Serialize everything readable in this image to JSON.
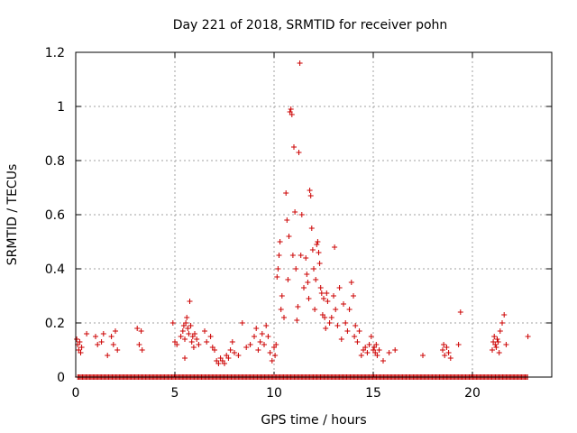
{
  "chart_data": {
    "type": "scatter",
    "title": "Day 221 of 2018, SRMTID for receiver pohn",
    "xlabel": "GPS time / hours",
    "ylabel": "SRMTID / TECUs",
    "xlim": [
      0,
      24
    ],
    "ylim": [
      0,
      1.2
    ],
    "xticks": [
      0,
      5,
      10,
      15,
      20
    ],
    "yticks": [
      0,
      0.2,
      0.4,
      0.6,
      0.8,
      1,
      1.2
    ],
    "ytick_labels": [
      "0",
      "0.2",
      "0.4",
      "0.6",
      "0.8",
      "1",
      "1.2"
    ],
    "grid": true,
    "marker": "+",
    "color": "#cc0000",
    "series": [
      {
        "name": "SRMTID",
        "points": [
          [
            0.05,
            0.14
          ],
          [
            0.1,
            0.12
          ],
          [
            0.15,
            0.1
          ],
          [
            0.2,
            0.13
          ],
          [
            0.25,
            0.09
          ],
          [
            0.3,
            0.11
          ],
          [
            0.55,
            0.16
          ],
          [
            1.0,
            0.15
          ],
          [
            1.1,
            0.12
          ],
          [
            1.3,
            0.13
          ],
          [
            1.4,
            0.16
          ],
          [
            1.6,
            0.08
          ],
          [
            1.8,
            0.15
          ],
          [
            1.9,
            0.12
          ],
          [
            2.0,
            0.17
          ],
          [
            2.1,
            0.1
          ],
          [
            3.1,
            0.18
          ],
          [
            3.2,
            0.12
          ],
          [
            3.3,
            0.17
          ],
          [
            3.35,
            0.1
          ],
          [
            4.9,
            0.2
          ],
          [
            5.0,
            0.13
          ],
          [
            5.1,
            0.12
          ],
          [
            5.3,
            0.15
          ],
          [
            5.4,
            0.17
          ],
          [
            5.45,
            0.19
          ],
          [
            5.5,
            0.14
          ],
          [
            5.55,
            0.2
          ],
          [
            5.6,
            0.22
          ],
          [
            5.65,
            0.18
          ],
          [
            5.7,
            0.16
          ],
          [
            5.75,
            0.28
          ],
          [
            5.8,
            0.19
          ],
          [
            5.85,
            0.13
          ],
          [
            5.9,
            0.15
          ],
          [
            5.95,
            0.11
          ],
          [
            6.0,
            0.16
          ],
          [
            6.1,
            0.14
          ],
          [
            6.2,
            0.12
          ],
          [
            5.5,
            0.07
          ],
          [
            6.5,
            0.17
          ],
          [
            6.6,
            0.13
          ],
          [
            6.8,
            0.15
          ],
          [
            6.9,
            0.11
          ],
          [
            7.0,
            0.1
          ],
          [
            7.1,
            0.06
          ],
          [
            7.2,
            0.05
          ],
          [
            7.3,
            0.07
          ],
          [
            7.4,
            0.06
          ],
          [
            7.5,
            0.05
          ],
          [
            7.6,
            0.08
          ],
          [
            7.7,
            0.07
          ],
          [
            7.8,
            0.1
          ],
          [
            7.9,
            0.13
          ],
          [
            8.0,
            0.09
          ],
          [
            8.2,
            0.08
          ],
          [
            8.4,
            0.2
          ],
          [
            8.6,
            0.11
          ],
          [
            8.8,
            0.12
          ],
          [
            9.0,
            0.15
          ],
          [
            9.1,
            0.18
          ],
          [
            9.2,
            0.1
          ],
          [
            9.3,
            0.13
          ],
          [
            9.4,
            0.16
          ],
          [
            9.5,
            0.12
          ],
          [
            9.6,
            0.19
          ],
          [
            9.7,
            0.15
          ],
          [
            9.8,
            0.09
          ],
          [
            9.9,
            0.06
          ],
          [
            10.0,
            0.11
          ],
          [
            10.05,
            0.08
          ],
          [
            10.1,
            0.12
          ],
          [
            10.15,
            0.37
          ],
          [
            10.2,
            0.4
          ],
          [
            10.25,
            0.45
          ],
          [
            10.3,
            0.5
          ],
          [
            10.35,
            0.25
          ],
          [
            10.4,
            0.3
          ],
          [
            10.5,
            0.22
          ],
          [
            10.6,
            0.68
          ],
          [
            10.65,
            0.58
          ],
          [
            10.7,
            0.36
          ],
          [
            10.75,
            0.52
          ],
          [
            10.8,
            0.98
          ],
          [
            10.85,
            0.99
          ],
          [
            10.9,
            0.97
          ],
          [
            10.95,
            0.45
          ],
          [
            11.0,
            0.85
          ],
          [
            11.05,
            0.61
          ],
          [
            11.1,
            0.4
          ],
          [
            11.15,
            0.21
          ],
          [
            11.2,
            0.26
          ],
          [
            11.25,
            0.83
          ],
          [
            11.3,
            1.16
          ],
          [
            11.35,
            0.45
          ],
          [
            11.4,
            0.6
          ],
          [
            11.5,
            0.33
          ],
          [
            11.6,
            0.44
          ],
          [
            11.65,
            0.38
          ],
          [
            11.7,
            0.35
          ],
          [
            11.75,
            0.29
          ],
          [
            11.8,
            0.69
          ],
          [
            11.85,
            0.67
          ],
          [
            11.9,
            0.55
          ],
          [
            11.95,
            0.47
          ],
          [
            12.0,
            0.4
          ],
          [
            12.05,
            0.25
          ],
          [
            12.1,
            0.36
          ],
          [
            12.15,
            0.49
          ],
          [
            12.2,
            0.5
          ],
          [
            12.25,
            0.46
          ],
          [
            12.3,
            0.42
          ],
          [
            12.35,
            0.33
          ],
          [
            12.4,
            0.31
          ],
          [
            12.45,
            0.23
          ],
          [
            12.5,
            0.29
          ],
          [
            12.55,
            0.22
          ],
          [
            12.6,
            0.18
          ],
          [
            12.65,
            0.31
          ],
          [
            12.7,
            0.28
          ],
          [
            12.8,
            0.2
          ],
          [
            12.9,
            0.22
          ],
          [
            13.0,
            0.3
          ],
          [
            13.05,
            0.48
          ],
          [
            13.1,
            0.25
          ],
          [
            13.2,
            0.19
          ],
          [
            13.3,
            0.33
          ],
          [
            13.4,
            0.14
          ],
          [
            13.5,
            0.27
          ],
          [
            13.6,
            0.2
          ],
          [
            13.7,
            0.17
          ],
          [
            13.8,
            0.25
          ],
          [
            13.9,
            0.35
          ],
          [
            14.0,
            0.3
          ],
          [
            14.05,
            0.15
          ],
          [
            14.1,
            0.19
          ],
          [
            14.2,
            0.13
          ],
          [
            14.3,
            0.17
          ],
          [
            14.4,
            0.08
          ],
          [
            14.5,
            0.1
          ],
          [
            14.6,
            0.11
          ],
          [
            14.7,
            0.09
          ],
          [
            14.8,
            0.12
          ],
          [
            14.9,
            0.15
          ],
          [
            15.0,
            0.1
          ],
          [
            15.05,
            0.11
          ],
          [
            15.1,
            0.09
          ],
          [
            15.15,
            0.12
          ],
          [
            15.2,
            0.08
          ],
          [
            15.3,
            0.1
          ],
          [
            15.5,
            0.06
          ],
          [
            15.8,
            0.09
          ],
          [
            16.1,
            0.1
          ],
          [
            17.5,
            0.08
          ],
          [
            18.5,
            0.1
          ],
          [
            18.55,
            0.12
          ],
          [
            18.6,
            0.08
          ],
          [
            18.7,
            0.11
          ],
          [
            18.8,
            0.09
          ],
          [
            18.9,
            0.07
          ],
          [
            19.3,
            0.12
          ],
          [
            19.4,
            0.24
          ],
          [
            21.0,
            0.1
          ],
          [
            21.05,
            0.13
          ],
          [
            21.1,
            0.15
          ],
          [
            21.15,
            0.12
          ],
          [
            21.2,
            0.11
          ],
          [
            21.25,
            0.14
          ],
          [
            21.3,
            0.13
          ],
          [
            21.35,
            0.09
          ],
          [
            21.4,
            0.17
          ],
          [
            21.5,
            0.2
          ],
          [
            21.6,
            0.23
          ],
          [
            21.7,
            0.12
          ],
          [
            22.8,
            0.15
          ]
        ],
        "zero_band": [
          0.1,
          22.8
        ]
      }
    ]
  }
}
